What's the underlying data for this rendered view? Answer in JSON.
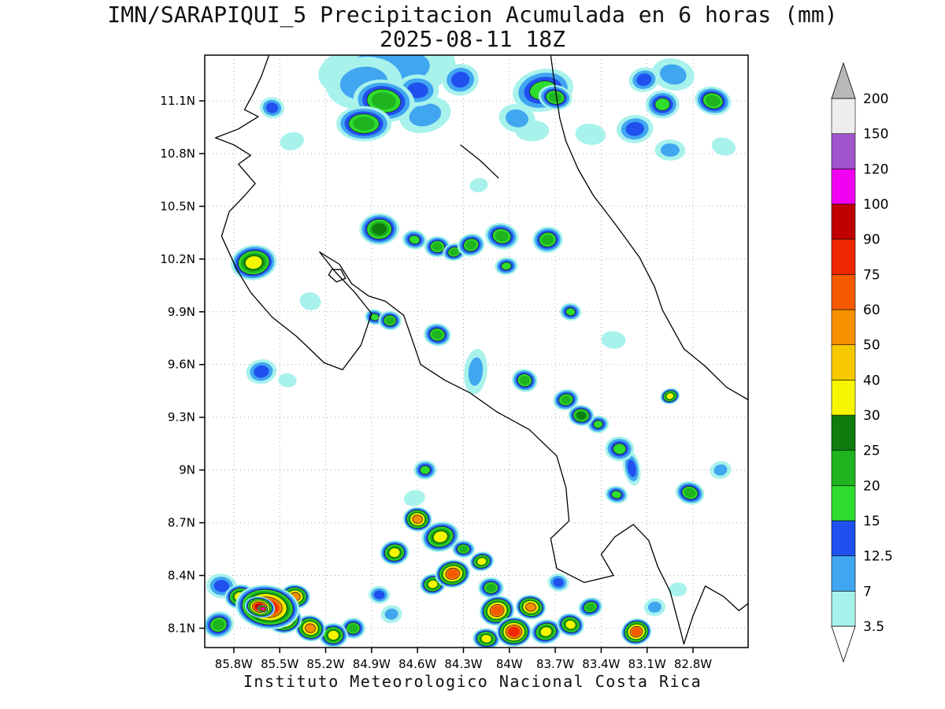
{
  "chart_data": {
    "type": "heatmap",
    "title": "IMN/SARAPIQUI_5 Precipitacion Acumulada en 6 horas (mm)",
    "subtitle": "2025-08-11 18Z",
    "footer": "Instituto Meteorologico Nacional Costa Rica",
    "units": "mm",
    "x_ticks": [
      "85.8W",
      "85.5W",
      "85.2W",
      "84.9W",
      "84.6W",
      "84.3W",
      "84W",
      "83.7W",
      "83.4W",
      "83.1W",
      "82.8W"
    ],
    "x_tick_values": [
      85.8,
      85.5,
      85.2,
      84.9,
      84.6,
      84.3,
      84,
      83.7,
      83.4,
      83.1,
      82.8
    ],
    "y_ticks": [
      "11.1N",
      "10.8N",
      "10.5N",
      "10.2N",
      "9.9N",
      "9.6N",
      "9.3N",
      "9N",
      "8.7N",
      "8.4N",
      "8.1N"
    ],
    "y_tick_values": [
      11.1,
      10.8,
      10.5,
      10.2,
      9.9,
      9.6,
      9.3,
      9,
      8.7,
      8.4,
      8.1
    ],
    "extent": {
      "lon_min": 82.44,
      "lon_max": 85.99,
      "lat_min": 7.99,
      "lat_max": 11.36
    },
    "grid": true,
    "legend_position": "right",
    "colorbar": {
      "levels": [
        3.5,
        7,
        12.5,
        15,
        20,
        25,
        30,
        40,
        50,
        60,
        75,
        90,
        100,
        120,
        150,
        200
      ],
      "labels": [
        "3.5",
        "7",
        "12.5",
        "15",
        "20",
        "25",
        "30",
        "40",
        "50",
        "60",
        "75",
        "90",
        "100",
        "120",
        "150",
        "200"
      ],
      "colors": [
        "#a8f2ec",
        "#41a6f0",
        "#2050ee",
        "#2edd2e",
        "#1fb41f",
        "#0e7d0e",
        "#f6f600",
        "#f6c800",
        "#f69000",
        "#f65a00",
        "#ee2800",
        "#c00000",
        "#f200f2",
        "#a055cc",
        "#ededed"
      ],
      "over_color": "#b8b8b8",
      "under_color": "#ffffff"
    },
    "cells_format": [
      "lon_w",
      "lat_n",
      "core_level_mm",
      "rx_deg",
      "ry_deg"
    ],
    "cells": [
      [
        84.8,
        11.28,
        7,
        0.45,
        0.18
      ],
      [
        84.95,
        11.2,
        7,
        0.25,
        0.15
      ],
      [
        84.55,
        11.02,
        7,
        0.17,
        0.1
      ],
      [
        84.82,
        11.1,
        20,
        0.2,
        0.12
      ],
      [
        84.95,
        10.97,
        20,
        0.18,
        0.1
      ],
      [
        84.6,
        11.16,
        12.5,
        0.14,
        0.09
      ],
      [
        84.32,
        11.22,
        12.5,
        0.12,
        0.09
      ],
      [
        85.55,
        11.06,
        12.5,
        0.08,
        0.06
      ],
      [
        85.42,
        10.87,
        3.5,
        0.08,
        0.05
      ],
      [
        83.78,
        11.16,
        15,
        0.2,
        0.12
      ],
      [
        83.7,
        11.12,
        20,
        0.11,
        0.07
      ],
      [
        83.95,
        11.0,
        7,
        0.12,
        0.08
      ],
      [
        83.85,
        10.93,
        3.5,
        0.11,
        0.06
      ],
      [
        83.47,
        10.91,
        3.5,
        0.1,
        0.06
      ],
      [
        83.18,
        10.94,
        12.5,
        0.12,
        0.08
      ],
      [
        83.0,
        11.08,
        15,
        0.11,
        0.08
      ],
      [
        82.67,
        11.1,
        20,
        0.12,
        0.08
      ],
      [
        82.93,
        11.25,
        7,
        0.14,
        0.09
      ],
      [
        83.12,
        11.22,
        12.5,
        0.1,
        0.07
      ],
      [
        82.95,
        10.82,
        7,
        0.1,
        0.06
      ],
      [
        82.6,
        10.84,
        3.5,
        0.08,
        0.05
      ],
      [
        84.2,
        10.62,
        3.5,
        0.06,
        0.04
      ],
      [
        85.67,
        10.18,
        30,
        0.15,
        0.1
      ],
      [
        84.85,
        10.37,
        25,
        0.13,
        0.09
      ],
      [
        84.62,
        10.31,
        15,
        0.08,
        0.055
      ],
      [
        84.47,
        10.27,
        20,
        0.085,
        0.06
      ],
      [
        84.36,
        10.24,
        20,
        0.075,
        0.05
      ],
      [
        84.25,
        10.28,
        20,
        0.09,
        0.065
      ],
      [
        84.05,
        10.33,
        20,
        0.11,
        0.075
      ],
      [
        83.75,
        10.31,
        20,
        0.1,
        0.075
      ],
      [
        84.02,
        10.16,
        15,
        0.075,
        0.05
      ],
      [
        85.3,
        9.96,
        3.5,
        0.07,
        0.05
      ],
      [
        84.88,
        9.87,
        15,
        0.065,
        0.045
      ],
      [
        84.78,
        9.85,
        20,
        0.075,
        0.055
      ],
      [
        84.47,
        9.77,
        20,
        0.09,
        0.065
      ],
      [
        83.6,
        9.9,
        15,
        0.07,
        0.05
      ],
      [
        83.32,
        9.74,
        3.5,
        0.08,
        0.05
      ],
      [
        84.22,
        9.56,
        7,
        0.075,
        0.13
      ],
      [
        83.9,
        9.51,
        20,
        0.085,
        0.065
      ],
      [
        85.62,
        9.56,
        12.5,
        0.1,
        0.07
      ],
      [
        85.45,
        9.51,
        3.5,
        0.06,
        0.04
      ],
      [
        83.63,
        9.4,
        20,
        0.085,
        0.06
      ],
      [
        83.53,
        9.31,
        25,
        0.085,
        0.06
      ],
      [
        83.42,
        9.26,
        15,
        0.07,
        0.05
      ],
      [
        82.95,
        9.42,
        30,
        0.065,
        0.045
      ],
      [
        83.28,
        9.12,
        15,
        0.095,
        0.07
      ],
      [
        83.2,
        9.01,
        12.5,
        0.055,
        0.1
      ],
      [
        83.3,
        8.86,
        15,
        0.075,
        0.05
      ],
      [
        82.82,
        8.87,
        20,
        0.095,
        0.065
      ],
      [
        82.62,
        9.0,
        7,
        0.07,
        0.05
      ],
      [
        84.55,
        9.0,
        15,
        0.075,
        0.055
      ],
      [
        84.62,
        8.84,
        3.5,
        0.07,
        0.045
      ],
      [
        84.6,
        8.72,
        50,
        0.095,
        0.07
      ],
      [
        84.75,
        8.53,
        30,
        0.095,
        0.07
      ],
      [
        84.45,
        8.62,
        30,
        0.125,
        0.085
      ],
      [
        84.3,
        8.55,
        20,
        0.075,
        0.05
      ],
      [
        84.37,
        8.41,
        60,
        0.115,
        0.08
      ],
      [
        84.5,
        8.35,
        30,
        0.085,
        0.06
      ],
      [
        84.18,
        8.48,
        30,
        0.08,
        0.055
      ],
      [
        85.58,
        8.22,
        75,
        0.21,
        0.125
      ],
      [
        85.63,
        8.22,
        90,
        0.1,
        0.06
      ],
      [
        85.61,
        8.21,
        100,
        0.035,
        0.022
      ],
      [
        85.47,
        8.15,
        60,
        0.115,
        0.08
      ],
      [
        85.4,
        8.28,
        50,
        0.1,
        0.07
      ],
      [
        85.76,
        8.28,
        30,
        0.1,
        0.07
      ],
      [
        85.88,
        8.34,
        12.5,
        0.1,
        0.07
      ],
      [
        85.9,
        8.12,
        20,
        0.1,
        0.075
      ],
      [
        85.3,
        8.1,
        50,
        0.1,
        0.075
      ],
      [
        85.15,
        8.06,
        30,
        0.095,
        0.07
      ],
      [
        85.02,
        8.1,
        20,
        0.08,
        0.06
      ],
      [
        84.85,
        8.29,
        12.5,
        0.07,
        0.05
      ],
      [
        84.77,
        8.18,
        7,
        0.07,
        0.05
      ],
      [
        84.08,
        8.2,
        60,
        0.115,
        0.085
      ],
      [
        83.97,
        8.08,
        75,
        0.115,
        0.085
      ],
      [
        83.86,
        8.22,
        50,
        0.1,
        0.07
      ],
      [
        84.15,
        8.04,
        30,
        0.09,
        0.06
      ],
      [
        83.76,
        8.08,
        30,
        0.1,
        0.07
      ],
      [
        84.12,
        8.33,
        20,
        0.085,
        0.06
      ],
      [
        83.6,
        8.12,
        30,
        0.09,
        0.065
      ],
      [
        83.47,
        8.22,
        20,
        0.08,
        0.055
      ],
      [
        83.17,
        8.08,
        60,
        0.1,
        0.075
      ],
      [
        83.05,
        8.22,
        7,
        0.07,
        0.05
      ],
      [
        83.68,
        8.36,
        12.5,
        0.07,
        0.05
      ],
      [
        82.9,
        8.32,
        3.5,
        0.06,
        0.04
      ]
    ],
    "coastline": [
      [
        [
          85.57,
          11.36
        ],
        [
          85.62,
          11.24
        ],
        [
          85.68,
          11.13
        ],
        [
          85.73,
          11.05
        ],
        [
          85.64,
          11.01
        ],
        [
          85.77,
          10.94
        ],
        [
          85.92,
          10.89
        ],
        [
          85.8,
          10.85
        ],
        [
          85.69,
          10.79
        ],
        [
          85.77,
          10.74
        ],
        [
          85.66,
          10.63
        ],
        [
          85.73,
          10.56
        ],
        [
          85.83,
          10.47
        ],
        [
          85.88,
          10.33
        ],
        [
          85.78,
          10.14
        ],
        [
          85.69,
          10.01
        ],
        [
          85.55,
          9.87
        ],
        [
          85.39,
          9.76
        ],
        [
          85.21,
          9.61
        ],
        [
          85.09,
          9.57
        ],
        [
          84.97,
          9.71
        ],
        [
          84.9,
          9.89
        ],
        [
          85.01,
          10.01
        ],
        [
          85.14,
          10.13
        ],
        [
          85.24,
          10.24
        ],
        [
          85.11,
          10.17
        ],
        [
          85.03,
          10.06
        ],
        [
          84.92,
          9.99
        ],
        [
          84.81,
          9.96
        ],
        [
          84.69,
          9.88
        ],
        [
          84.63,
          9.73
        ],
        [
          84.58,
          9.6
        ],
        [
          84.42,
          9.51
        ],
        [
          84.26,
          9.44
        ],
        [
          84.08,
          9.33
        ],
        [
          83.87,
          9.23
        ],
        [
          83.69,
          9.08
        ],
        [
          83.63,
          8.9
        ],
        [
          83.61,
          8.71
        ],
        [
          83.73,
          8.61
        ],
        [
          83.69,
          8.44
        ],
        [
          83.51,
          8.36
        ],
        [
          83.32,
          8.4
        ],
        [
          83.4,
          8.52
        ],
        [
          83.31,
          8.62
        ],
        [
          83.19,
          8.69
        ],
        [
          83.09,
          8.6
        ],
        [
          83.03,
          8.45
        ],
        [
          82.95,
          8.31
        ],
        [
          82.88,
          8.08
        ],
        [
          82.86,
          8.01
        ],
        [
          82.8,
          8.17
        ],
        [
          82.72,
          8.34
        ],
        [
          82.6,
          8.28
        ],
        [
          82.5,
          8.2
        ],
        [
          82.44,
          8.24
        ]
      ],
      [
        [
          82.44,
          9.4
        ],
        [
          82.58,
          9.47
        ],
        [
          82.72,
          9.59
        ],
        [
          82.86,
          9.69
        ],
        [
          83.0,
          9.91
        ],
        [
          83.05,
          10.04
        ],
        [
          83.15,
          10.21
        ],
        [
          83.3,
          10.39
        ],
        [
          83.45,
          10.56
        ],
        [
          83.55,
          10.71
        ],
        [
          83.63,
          10.87
        ],
        [
          83.67,
          11.0
        ],
        [
          83.7,
          11.17
        ],
        [
          83.73,
          11.36
        ]
      ],
      [
        [
          84.32,
          10.85
        ],
        [
          84.19,
          10.76
        ],
        [
          84.07,
          10.66
        ]
      ]
    ],
    "island": [
      [
        85.18,
        10.11
      ],
      [
        85.13,
        10.07
      ],
      [
        85.07,
        10.09
      ],
      [
        85.1,
        10.14
      ],
      [
        85.16,
        10.14
      ]
    ]
  }
}
